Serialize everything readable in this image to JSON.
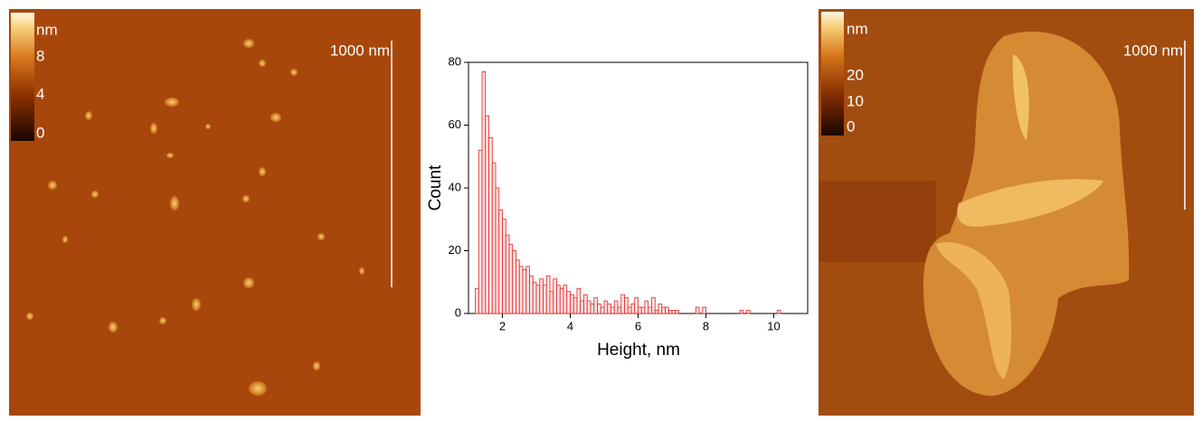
{
  "images": [
    {
      "colorbar_unit": "nm",
      "colorbar_ticks": [
        8,
        4,
        0
      ],
      "scale_bar": "1000 nm"
    },
    {
      "colorbar_unit": "nm",
      "colorbar_ticks": [
        20,
        10,
        0
      ],
      "scale_bar": "1000 nm"
    }
  ],
  "chart_data": {
    "type": "histogram",
    "x_label": "Height, nm",
    "y_label": "Count",
    "bins": [
      1.2,
      1.3,
      1.4,
      1.5,
      1.6,
      1.7,
      1.8,
      1.9,
      2.0,
      2.1,
      2.2,
      2.3,
      2.4,
      2.5,
      2.6,
      2.7,
      2.8,
      2.9,
      3.0,
      3.1,
      3.2,
      3.3,
      3.4,
      3.5,
      3.6,
      3.7,
      3.8,
      3.9,
      4.0,
      4.1,
      4.2,
      4.3,
      4.4,
      4.5,
      4.6,
      4.7,
      4.8,
      4.9,
      5.0,
      5.1,
      5.2,
      5.3,
      5.4,
      5.5,
      5.6,
      5.7,
      5.8,
      5.9,
      6.0,
      6.1,
      6.2,
      6.3,
      6.4,
      6.5,
      6.6,
      6.7,
      6.8,
      6.9,
      7.0,
      7.1,
      7.2,
      7.3,
      7.4,
      7.5,
      7.6,
      7.7,
      7.8,
      7.9,
      8.0,
      8.1,
      8.2,
      8.3,
      8.4,
      8.5,
      8.6,
      8.7,
      8.8,
      8.9,
      9.0,
      9.1,
      9.2,
      9.3,
      9.4,
      9.5,
      9.6,
      9.7,
      9.8,
      9.9,
      10.0,
      10.1,
      10.2
    ],
    "values": [
      8,
      52,
      77,
      63,
      56,
      48,
      40,
      33,
      30,
      25,
      22,
      20,
      17,
      15,
      14,
      15,
      12,
      10,
      9,
      11,
      9,
      12,
      7,
      11,
      9,
      8,
      9,
      7,
      6,
      5,
      8,
      4,
      6,
      4,
      3,
      5,
      3,
      2,
      4,
      3,
      2,
      4,
      2,
      6,
      5,
      2,
      3,
      5,
      2,
      2,
      4,
      2,
      5,
      1,
      3,
      2,
      2,
      1,
      1,
      1,
      0,
      0,
      0,
      0,
      0,
      2,
      0,
      2,
      0,
      0,
      0,
      0,
      0,
      0,
      0,
      0,
      0,
      0,
      1,
      0,
      1,
      0,
      0,
      0,
      0,
      0,
      0,
      0,
      0,
      1
    ],
    "color": "#e02020",
    "xlim": [
      1,
      11
    ],
    "xticks": [
      2,
      4,
      6,
      8,
      10
    ],
    "ylim": [
      0,
      80
    ],
    "yticks": [
      0,
      20,
      40,
      60,
      80
    ]
  }
}
